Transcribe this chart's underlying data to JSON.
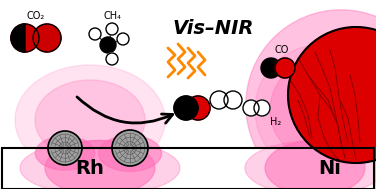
{
  "bg_color": "#ffffff",
  "label_rh": "Rh",
  "label_ni": "Ni",
  "label_co2": "CO₂",
  "label_ch4": "CH₄",
  "label_vis_nir": "Vis–NIR",
  "label_co": "CO",
  "label_h2": "H₂",
  "orange_color": "#ff8800",
  "red_color": "#cc0000",
  "bright_red": "#dd0000",
  "dark_red": "#880000",
  "pink_glow": "#ff69b4",
  "black": "#000000",
  "white": "#ffffff",
  "gray_particle": "#a0a0a0",
  "dark_gray": "#555555",
  "bar_pink_left": "#ffaacc",
  "bar_pink_right": "#ffaacc"
}
